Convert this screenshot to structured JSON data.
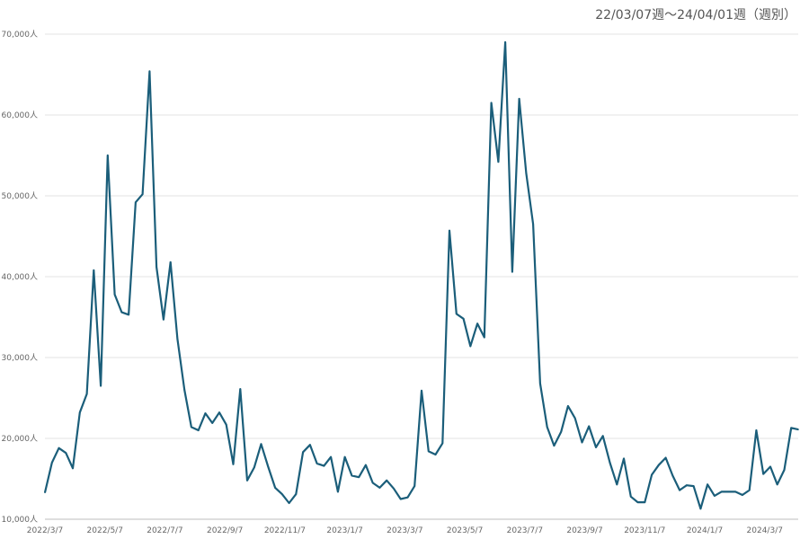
{
  "chart_data": {
    "type": "line",
    "title": "22/03/07週〜24/04/01週（週別）",
    "xlabel": "",
    "ylabel": "",
    "ylim": [
      10000,
      70000
    ],
    "yticks": [
      "10,000人",
      "20,000人",
      "30,000人",
      "40,000人",
      "50,000人",
      "60,000人",
      "70,000人"
    ],
    "ytick_values": [
      10000,
      20000,
      30000,
      40000,
      50000,
      60000,
      70000
    ],
    "xticks": [
      "2022/3/7",
      "2022/5/7",
      "2022/7/7",
      "2022/9/7",
      "2022/11/7",
      "2023/1/7",
      "2023/3/7",
      "2023/5/7",
      "2023/7/7",
      "2023/9/7",
      "2023/11/7",
      "2024/1/7",
      "2024/3/7"
    ],
    "grid": true,
    "line_color": "#1b5e7a",
    "series": [
      {
        "values": [
          13300,
          17000,
          18800,
          18200,
          16300,
          23200,
          25500,
          40800,
          26500,
          55000,
          37800,
          35600,
          35300,
          49200,
          50200,
          65400,
          41200,
          34700,
          41800,
          32300,
          26000,
          21400,
          21000,
          23100,
          21900,
          23200,
          21700,
          16800,
          26100,
          14800,
          16400,
          19300,
          16500,
          13900,
          13100,
          12000,
          13100,
          18300,
          19200,
          16900,
          16600,
          17700,
          13400,
          17700,
          15400,
          15200,
          16700,
          14500,
          13900,
          14800,
          13800,
          12500,
          12700,
          14100,
          25900,
          18400,
          18000,
          19400,
          45700,
          35400,
          34800,
          31400,
          34200,
          32500,
          61500,
          54200,
          69000,
          40600,
          62000,
          52800,
          46500,
          26800,
          21400,
          19100,
          20800,
          24000,
          22500,
          19500,
          21500,
          18900,
          20300,
          17000,
          14300,
          17500,
          12800,
          12100,
          12100,
          15500,
          16700,
          17600,
          15400,
          13600,
          14200,
          14100,
          11300,
          14300,
          12900,
          13400,
          13400,
          13400,
          13000,
          13600,
          21000,
          15600,
          16500,
          14300,
          16100,
          21300,
          21100
        ]
      }
    ]
  }
}
